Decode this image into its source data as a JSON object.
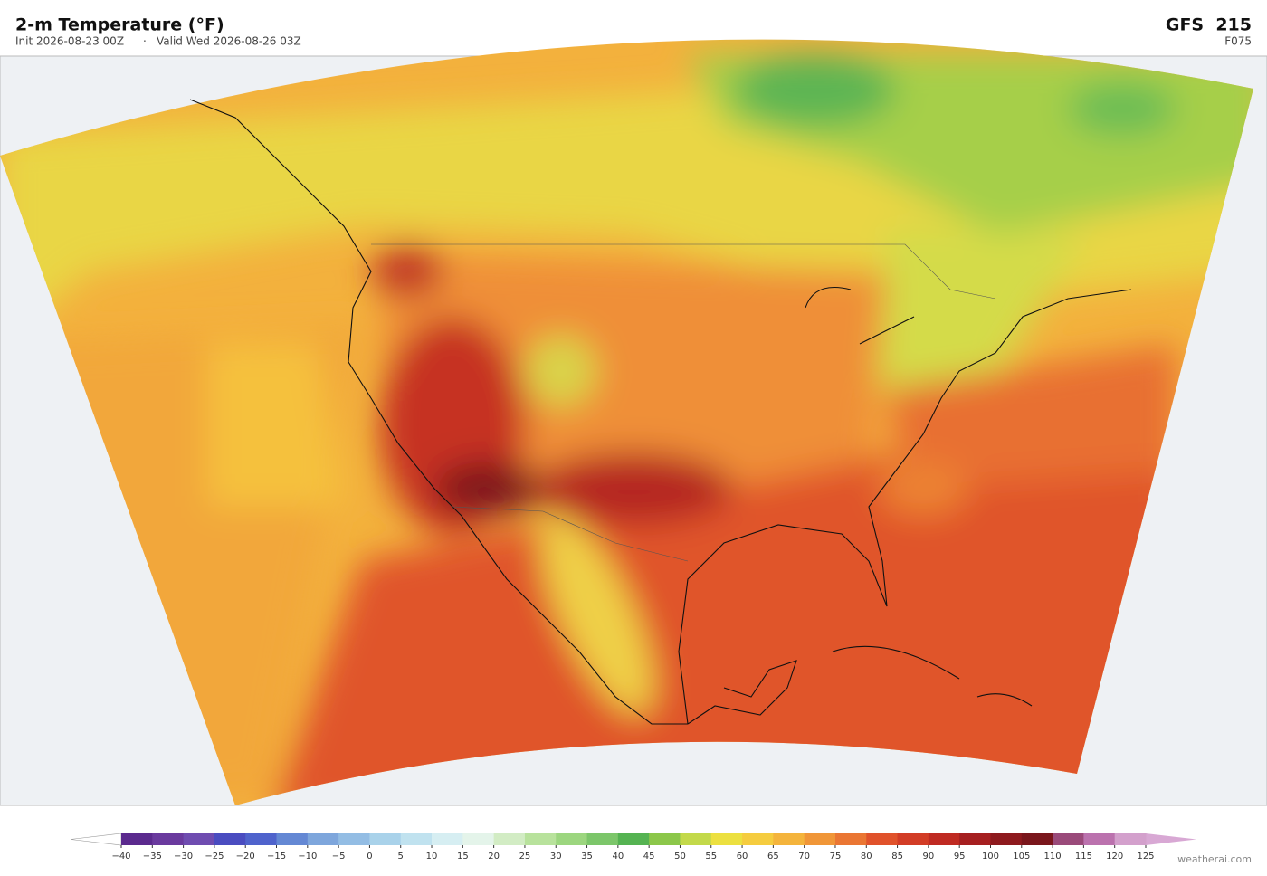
{
  "header": {
    "title": "2-m Temperature  (°F)",
    "init": "Init 2026-08-23 00Z",
    "separator": "·",
    "valid": "Valid Wed 2026-08-26 03Z",
    "model": "GFS  215",
    "forecast": "F075"
  },
  "colorbar": {
    "ticks": [
      {
        "value": -40,
        "label": "−40"
      },
      {
        "value": -35,
        "label": "−35"
      },
      {
        "value": -30,
        "label": "−30"
      },
      {
        "value": -25,
        "label": "−25"
      },
      {
        "value": -20,
        "label": "−20"
      },
      {
        "value": -15,
        "label": "−15"
      },
      {
        "value": -10,
        "label": "−10"
      },
      {
        "value": -5,
        "label": "−5"
      },
      0,
      5,
      10,
      15,
      20,
      25,
      30,
      35,
      40,
      45,
      50,
      55,
      60,
      65,
      70,
      75,
      80,
      85,
      90,
      95,
      100,
      105,
      110,
      115,
      120,
      125
    ],
    "colors": [
      "#5b2a8e",
      "#6a3a9e",
      "#6f4cb0",
      "#4a4cc0",
      "#4f63cc",
      "#6488d4",
      "#7ea6dc",
      "#93bde4",
      "#a9d2ea",
      "#c0e2ef",
      "#d6eef2",
      "#e4f4ea",
      "#d2ecc4",
      "#b8e29c",
      "#9cd67f",
      "#7cc66a",
      "#55b352",
      "#8cc74a",
      "#c3d94a",
      "#ece040",
      "#f5cc3f",
      "#f4b43c",
      "#f09638",
      "#ea7633",
      "#e0522b",
      "#d23c26",
      "#bf2a22",
      "#a61f20",
      "#8e1a1e",
      "#7a161c",
      "#9a4a7a",
      "#bb72ae",
      "#d3a0cc"
    ],
    "under_color": "#ffffff",
    "over_color": "#d8a8d4"
  },
  "credit": "weatherai.com"
}
